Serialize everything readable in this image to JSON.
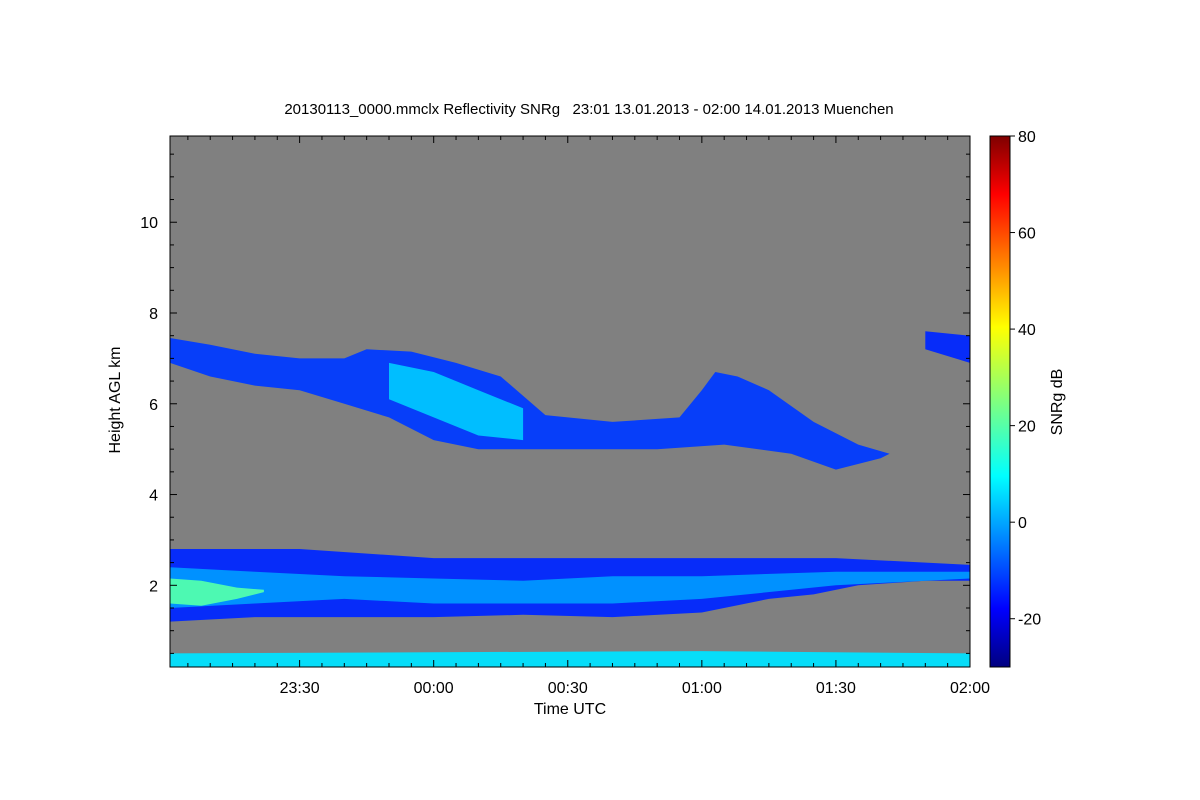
{
  "chart_data": {
    "type": "heatmap",
    "title": "20130113_0000.mmclx Reflectivity SNRg   23:01 13.01.2013 - 02:00 14.01.2013 Muenchen",
    "xlabel": "Time UTC",
    "ylabel": "Height AGL km",
    "x_range_minutes_utc": [
      -59,
      120
    ],
    "x_ticks": [
      {
        "label": "23:30",
        "value": -30
      },
      {
        "label": "00:00",
        "value": 0
      },
      {
        "label": "00:30",
        "value": 30
      },
      {
        "label": "01:00",
        "value": 60
      },
      {
        "label": "01:30",
        "value": 90
      },
      {
        "label": "02:00",
        "value": 120
      }
    ],
    "ylim": [
      0.2,
      11.9
    ],
    "y_ticks": [
      {
        "label": "2",
        "value": 2
      },
      {
        "label": "4",
        "value": 4
      },
      {
        "label": "6",
        "value": 6
      },
      {
        "label": "8",
        "value": 8
      },
      {
        "label": "10",
        "value": 10
      }
    ],
    "background_color": "#808080",
    "colorbar": {
      "label": "SNRg dB",
      "range": [
        -30,
        80
      ],
      "ticks": [
        {
          "label": "-20",
          "value": -20
        },
        {
          "label": "0",
          "value": 0
        },
        {
          "label": "20",
          "value": 20
        },
        {
          "label": "40",
          "value": 40
        },
        {
          "label": "60",
          "value": 60
        },
        {
          "label": "80",
          "value": 80
        }
      ],
      "colormap": "jet"
    },
    "features": [
      {
        "name": "upper cloud layer",
        "snr_db": -10,
        "top": [
          [
            -59,
            7.45
          ],
          [
            -50,
            7.3
          ],
          [
            -40,
            7.1
          ],
          [
            -30,
            7.0
          ],
          [
            -20,
            7.0
          ],
          [
            -15,
            7.2
          ],
          [
            -5,
            7.15
          ],
          [
            5,
            6.9
          ],
          [
            15,
            6.6
          ],
          [
            25,
            5.75
          ],
          [
            40,
            5.6
          ],
          [
            55,
            5.7
          ],
          [
            60,
            6.3
          ],
          [
            63,
            6.7
          ],
          [
            68,
            6.6
          ],
          [
            75,
            6.3
          ],
          [
            85,
            5.6
          ],
          [
            95,
            5.1
          ],
          [
            102,
            4.9
          ]
        ],
        "bottom": [
          [
            -59,
            6.9
          ],
          [
            -50,
            6.6
          ],
          [
            -40,
            6.4
          ],
          [
            -30,
            6.3
          ],
          [
            -20,
            6.0
          ],
          [
            -10,
            5.7
          ],
          [
            0,
            5.2
          ],
          [
            10,
            5.0
          ],
          [
            20,
            5.0
          ],
          [
            35,
            5.0
          ],
          [
            50,
            5.0
          ],
          [
            65,
            5.1
          ],
          [
            80,
            4.9
          ],
          [
            90,
            4.55
          ],
          [
            100,
            4.8
          ],
          [
            102,
            4.9
          ]
        ]
      },
      {
        "name": "upper cloud core",
        "snr_db": 5,
        "top": [
          [
            -10,
            6.9
          ],
          [
            0,
            6.7
          ],
          [
            10,
            6.3
          ],
          [
            20,
            5.9
          ]
        ],
        "bottom": [
          [
            -10,
            6.1
          ],
          [
            0,
            5.7
          ],
          [
            10,
            5.3
          ],
          [
            20,
            5.2
          ]
        ]
      },
      {
        "name": "cloud fragment",
        "snr_db": -12,
        "top": [
          [
            110,
            7.6
          ],
          [
            120,
            7.5
          ]
        ],
        "bottom": [
          [
            110,
            7.2
          ],
          [
            120,
            6.9
          ]
        ]
      },
      {
        "name": "low cloud layer",
        "snr_db": -12,
        "top": [
          [
            -59,
            2.8
          ],
          [
            -30,
            2.8
          ],
          [
            0,
            2.6
          ],
          [
            30,
            2.6
          ],
          [
            60,
            2.6
          ],
          [
            90,
            2.6
          ],
          [
            120,
            2.45
          ]
        ],
        "bottom": [
          [
            -59,
            1.2
          ],
          [
            -40,
            1.3
          ],
          [
            -20,
            1.3
          ],
          [
            0,
            1.3
          ],
          [
            20,
            1.35
          ],
          [
            40,
            1.3
          ],
          [
            60,
            1.4
          ],
          [
            75,
            1.7
          ],
          [
            85,
            1.8
          ],
          [
            95,
            2.0
          ],
          [
            110,
            2.1
          ],
          [
            120,
            2.1
          ]
        ]
      },
      {
        "name": "low cloud core",
        "snr_db": 0,
        "top": [
          [
            -59,
            2.4
          ],
          [
            -40,
            2.3
          ],
          [
            -20,
            2.2
          ],
          [
            0,
            2.15
          ],
          [
            20,
            2.1
          ],
          [
            40,
            2.2
          ],
          [
            60,
            2.2
          ],
          [
            90,
            2.3
          ],
          [
            120,
            2.3
          ]
        ],
        "bottom": [
          [
            -59,
            1.5
          ],
          [
            -40,
            1.6
          ],
          [
            -20,
            1.7
          ],
          [
            0,
            1.6
          ],
          [
            20,
            1.6
          ],
          [
            40,
            1.6
          ],
          [
            60,
            1.7
          ],
          [
            90,
            2.0
          ],
          [
            120,
            2.15
          ]
        ]
      },
      {
        "name": "low cloud peak",
        "snr_db": 20,
        "top": [
          [
            -59,
            2.15
          ],
          [
            -52,
            2.1
          ],
          [
            -44,
            1.95
          ],
          [
            -38,
            1.9
          ]
        ],
        "bottom": [
          [
            -59,
            1.6
          ],
          [
            -52,
            1.55
          ],
          [
            -44,
            1.7
          ],
          [
            -38,
            1.85
          ]
        ]
      },
      {
        "name": "near-surface band",
        "snr_db": 8,
        "top": [
          [
            -59,
            0.5
          ],
          [
            60,
            0.55
          ],
          [
            120,
            0.5
          ]
        ],
        "bottom": [
          [
            -59,
            0.2
          ],
          [
            60,
            0.2
          ],
          [
            120,
            0.2
          ]
        ]
      }
    ]
  }
}
